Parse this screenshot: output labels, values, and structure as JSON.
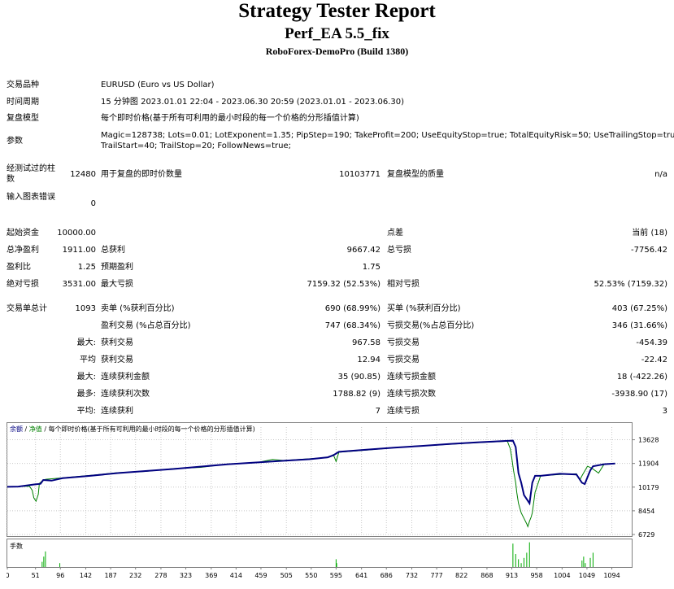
{
  "header": {
    "title": "Strategy Tester Report",
    "subtitle": "Perf_EA 5.5_fix",
    "build": "RoboForex-DemoPro (Build 1380)"
  },
  "settings": {
    "symbol_label": "交易品种",
    "symbol_value": "EURUSD (Euro vs US Dollar)",
    "period_label": "时间周期",
    "period_value": "15 分钟图 2023.01.01 22:04 - 2023.06.30 20:59 (2023.01.01 - 2023.06.30)",
    "model_label": "复盘模型",
    "model_value": "每个即时价格(基于所有可利用的最小时段的每一个价格的分形插值计算)",
    "params_label": "参数",
    "params_line1": "Magic=128738; Lots=0.01; LotExponent=1.35; PipStep=190; TakeProfit=200; UseEquityStop=true; TotalEquityRisk=50; UseTrailingStop=true;",
    "params_line2": "TrailStart=40; TrailStop=20; FollowNews=true;",
    "bars_label": "经测试过的柱数",
    "bars_value": "12480",
    "ticks_label": "用于复盘的即时价数量",
    "ticks_value": "10103771",
    "quality_label": "复盘模型的质量",
    "quality_value": "n/a",
    "errors_label": "输入图表错误",
    "errors_value": "0"
  },
  "stats": {
    "deposit_label": "起始资金",
    "deposit_value": "10000.00",
    "spread_label": "点差",
    "spread_value": "当前 (18)",
    "net_label": "总净盈利",
    "net_value": "1911.00",
    "gross_profit_label": "总获利",
    "gross_profit_value": "9667.42",
    "gross_loss_label": "总亏损",
    "gross_loss_value": "-7756.42",
    "pf_label": "盈利比",
    "pf_value": "1.25",
    "expected_label": "预期盈利",
    "expected_value": "1.75",
    "abs_dd_label": "绝对亏损",
    "abs_dd_value": "3531.00",
    "max_dd_label": "最大亏损",
    "max_dd_value": "7159.32 (52.53%)",
    "rel_dd_label": "相对亏损",
    "rel_dd_value": "52.53% (7159.32)",
    "total_trades_label": "交易单总计",
    "total_trades_value": "1093",
    "short_label": "卖单 (%获利百分比)",
    "short_value": "690 (68.99%)",
    "long_label": "买单 (%获利百分比)",
    "long_value": "403 (67.25%)",
    "profit_trades_label": "盈利交易 (%占总百分比)",
    "profit_trades_value": "747 (68.34%)",
    "loss_trades_label": "亏损交易(%占总百分比)",
    "loss_trades_value": "346 (31.66%)",
    "max_prefix": "最大:",
    "avg_prefix": "平均",
    "max_prefix2": "最大:",
    "most_prefix": "最多:",
    "avg_prefix2": "平均:",
    "largest_profit_label": "获利交易",
    "largest_profit_value": "967.58",
    "largest_loss_label": "亏损交易",
    "largest_loss_value": "-454.39",
    "avg_profit_label": "获利交易",
    "avg_profit_value": "12.94",
    "avg_loss_label": "亏损交易",
    "avg_loss_value": "-22.42",
    "max_cons_wins_label": "连续获利金额",
    "max_cons_wins_value": "35 (90.85)",
    "max_cons_losses_label": "连续亏损金额",
    "max_cons_losses_value": "18 (-422.26)",
    "max_cons_profit_label": "连续获利次数",
    "max_cons_profit_value": "1788.82 (9)",
    "max_cons_loss_label": "连续亏损次数",
    "max_cons_loss_value": "-3938.90 (17)",
    "avg_cons_wins_label": "连续获利",
    "avg_cons_wins_value": "7",
    "avg_cons_losses_label": "连续亏损",
    "avg_cons_losses_value": "3"
  },
  "colors": {
    "balance": "#000080",
    "equity": "#008000",
    "volume": "#00aa00",
    "grid": "#c8c8c8"
  },
  "chart_data": {
    "type": "line",
    "legend": [
      "余额",
      "净值",
      "每个即时价格(基于所有可利用的最小时段的每一个价格的分形插值计算)"
    ],
    "legend_position": "top-left",
    "volume_label": "手数",
    "ylim": [
      6729,
      14550
    ],
    "y_ticks": [
      13628,
      11904,
      10179,
      8454,
      6729
    ],
    "x_ticks": [
      0,
      51,
      96,
      142,
      187,
      232,
      278,
      323,
      369,
      414,
      459,
      505,
      550,
      595,
      641,
      686,
      732,
      777,
      822,
      868,
      913,
      958,
      1004,
      1049,
      1094
    ],
    "xlim": [
      0,
      1130
    ],
    "series": [
      {
        "name": "余额",
        "x": [
          0,
          20,
          50,
          60,
          65,
          80,
          100,
          150,
          200,
          300,
          400,
          500,
          550,
          580,
          590,
          600,
          650,
          700,
          750,
          800,
          850,
          880,
          905,
          915,
          920,
          925,
          930,
          935,
          940,
          945,
          950,
          955,
          965,
          1000,
          1030,
          1040,
          1045,
          1055,
          1060,
          1080,
          1100
        ],
        "y": [
          10200,
          10220,
          10380,
          10420,
          10700,
          10650,
          10830,
          11000,
          11200,
          11500,
          11850,
          12100,
          12220,
          12350,
          12500,
          12750,
          12900,
          13050,
          13180,
          13320,
          13440,
          13500,
          13550,
          13560,
          13100,
          11200,
          10500,
          9600,
          9300,
          9000,
          10500,
          11000,
          11000,
          11150,
          11100,
          10500,
          10400,
          11400,
          11700,
          11850,
          11900
        ]
      },
      {
        "name": "净值",
        "x": [
          0,
          40,
          45,
          48,
          52,
          56,
          58,
          65,
          70,
          100,
          150,
          200,
          250,
          300,
          350,
          400,
          450,
          480,
          500,
          550,
          580,
          590,
          595,
          600,
          650,
          700,
          750,
          800,
          850,
          880,
          905,
          910,
          913,
          916,
          920,
          922,
          925,
          930,
          935,
          940,
          942,
          945,
          948,
          950,
          955,
          965,
          980,
          1000,
          1030,
          1036,
          1040,
          1042,
          1050,
          1058,
          1070,
          1080,
          1100
        ],
        "y": [
          10200,
          10250,
          9950,
          9400,
          9150,
          9650,
          10450,
          10700,
          10750,
          10850,
          11030,
          11230,
          11320,
          11530,
          11620,
          11870,
          11950,
          12200,
          12120,
          12250,
          12330,
          12550,
          12050,
          12720,
          12880,
          13050,
          13170,
          13300,
          13420,
          13480,
          13520,
          13000,
          12300,
          11400,
          10500,
          9800,
          9000,
          8300,
          7900,
          7500,
          7300,
          7700,
          8000,
          8300,
          9800,
          11000,
          11050,
          11100,
          11150,
          10700,
          11000,
          11150,
          11700,
          11550,
          11200,
          11850,
          11900
        ]
      }
    ],
    "volume": {
      "x": [
        63,
        66,
        69,
        95,
        595,
        596,
        915,
        920,
        925,
        930,
        935,
        940,
        945,
        1040,
        1043,
        1046,
        1055,
        1060
      ],
      "values": [
        0.2,
        0.4,
        0.6,
        0.15,
        0.3,
        0.15,
        0.9,
        0.5,
        0.3,
        0.15,
        0.35,
        0.55,
        0.95,
        0.25,
        0.4,
        0.15,
        0.35,
        0.55
      ]
    }
  }
}
